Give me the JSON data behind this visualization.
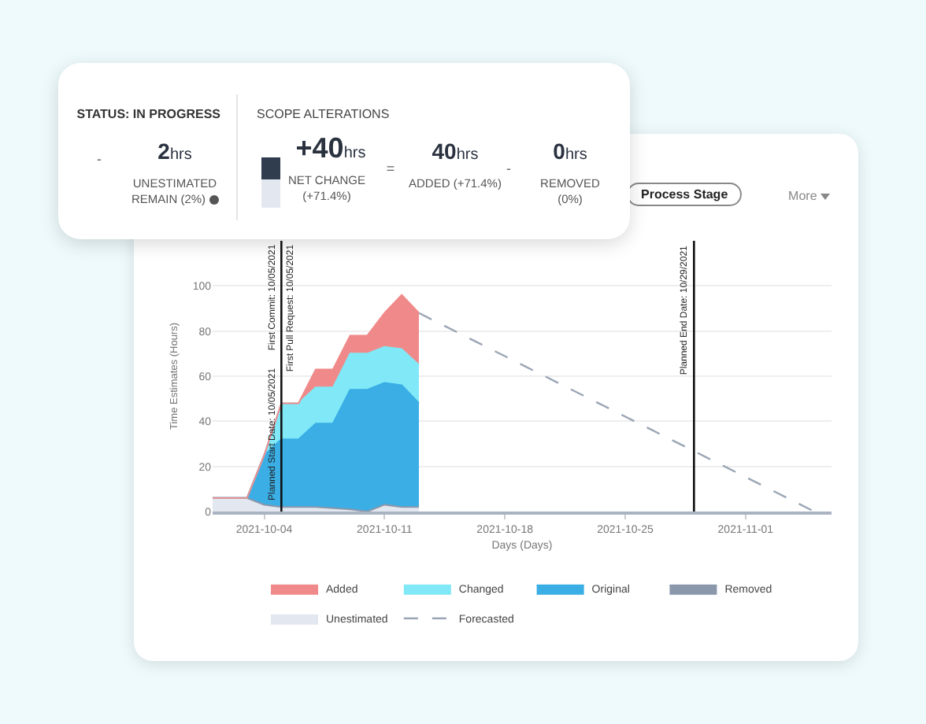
{
  "chart_data": [
    {
      "type": "other",
      "annotations": [
        "STATUS: IN PROGRESS",
        "-",
        "2hrs",
        "UNESTIMATED REMAIN (2%)",
        "SCOPE ALTERATIONS",
        "+40hrs",
        "NET CHANGE (+71.4%)",
        "=",
        "40hrs",
        "ADDED (+71.4%)",
        "-",
        "0hrs",
        "REMOVED (0%)"
      ]
    },
    {
      "type": "area",
      "stacked": true,
      "xlabel": "Days (Days)",
      "ylabel": "Time Estimates (Hours)",
      "annotations": [
        "Process Stage",
        "More",
        {
          "text": "First Commit: 10/05/2021",
          "x": "2021-10-05",
          "y": 120
        },
        {
          "text": "First Pull Request: 10/05/2021",
          "x": "2021-10-05",
          "y": 120
        }
      ],
      "x": [
        "2021-10-01",
        "2021-10-02",
        "2021-10-03",
        "2021-10-04",
        "2021-10-05",
        "2021-10-06",
        "2021-10-07",
        "2021-10-08",
        "2021-10-09",
        "2021-10-10",
        "2021-10-11",
        "2021-10-12",
        "2021-10-13"
      ],
      "series": [
        {
          "name": "Forecasted",
          "type": "line",
          "line_style": "dashed",
          "color": "#9aa5b5",
          "x": [
            "2021-10-13",
            "2021-11-05"
          ],
          "values": [
            88,
            0
          ]
        },
        {
          "name": "Unestimated",
          "color": "#e3e8f0",
          "values": [
            6,
            6,
            6,
            3,
            2,
            2,
            2,
            1.5,
            1,
            0,
            3,
            2,
            2
          ]
        },
        {
          "name": "Removed",
          "color": "#8b97ab",
          "values": [
            null,
            null,
            null,
            null,
            null,
            null,
            null,
            null,
            null,
            null,
            null,
            null,
            null
          ]
        },
        {
          "name": "Original",
          "color": "#3aaee5",
          "values": [
            0,
            0,
            0,
            22,
            30,
            30,
            37,
            37.5,
            53,
            54,
            54,
            54,
            46
          ]
        },
        {
          "name": "Changed",
          "color": "#80e8f6",
          "values": [
            0,
            0,
            0,
            0,
            16,
            16,
            16,
            16,
            16,
            16,
            16,
            16,
            17
          ]
        },
        {
          "name": "Added",
          "color": "#f08a8a",
          "values": [
            0,
            0,
            0,
            0,
            0,
            0,
            8,
            8,
            8,
            8,
            15,
            24,
            23
          ]
        }
      ],
      "xlim": [
        "2021-10-01",
        "2021-11-06"
      ],
      "xticks": [
        "2021-10-04",
        "2021-10-11",
        "2021-10-18",
        "2021-10-25",
        "2021-11-01"
      ],
      "ylim": [
        0,
        120
      ],
      "yticks": [
        0,
        20,
        40,
        60,
        80,
        100
      ],
      "grid": "y",
      "legend": "bottom",
      "ref_lines": [
        {
          "axis": "x",
          "value": "2021-10-05",
          "label": "Planned Start Date: 10/05/2021",
          "color": "#111111"
        },
        {
          "axis": "x",
          "value": "2021-10-29",
          "label": "Planned End Date: 10/29/2021",
          "color": "#111111"
        }
      ]
    }
  ]
}
